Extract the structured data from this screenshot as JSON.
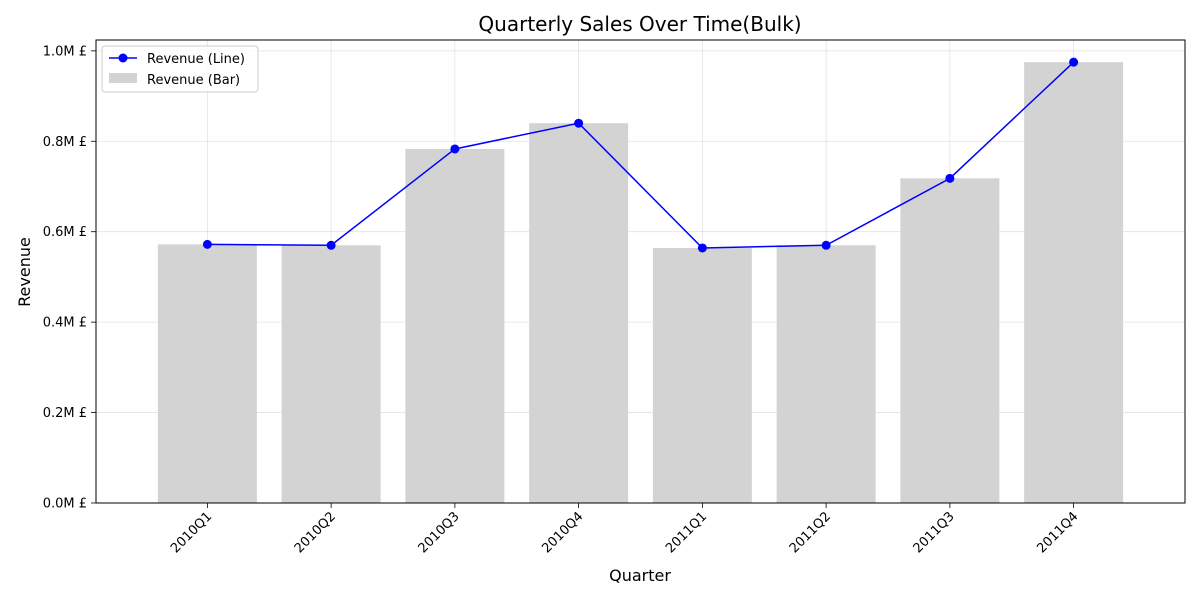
{
  "chart_data": {
    "type": "bar",
    "title": "Quarterly Sales Over Time(Bulk)",
    "xlabel": "Quarter",
    "ylabel": "Revenue",
    "categories": [
      "2010Q1",
      "2010Q2",
      "2010Q3",
      "2010Q4",
      "2011Q1",
      "2011Q2",
      "2011Q3",
      "2011Q4"
    ],
    "series": [
      {
        "name": "Revenue (Line)",
        "kind": "line",
        "color": "#0000ff",
        "marker": "circle",
        "values": [
          572000,
          570000,
          783000,
          840000,
          564000,
          570000,
          718000,
          975000
        ]
      },
      {
        "name": "Revenue (Bar)",
        "kind": "bar",
        "color": "#d3d3d3",
        "values": [
          572000,
          570000,
          783000,
          840000,
          564000,
          570000,
          718000,
          975000
        ]
      }
    ],
    "ylim": [
      0,
      1024000
    ],
    "yticks": [
      0,
      200000,
      400000,
      600000,
      800000,
      1000000
    ],
    "ytick_labels": [
      "0.0M £",
      "0.2M £",
      "0.4M £",
      "0.6M £",
      "0.8M £",
      "1.0M £"
    ],
    "grid": true,
    "legend_position": "upper-left",
    "xtick_rotation_deg": 45
  }
}
